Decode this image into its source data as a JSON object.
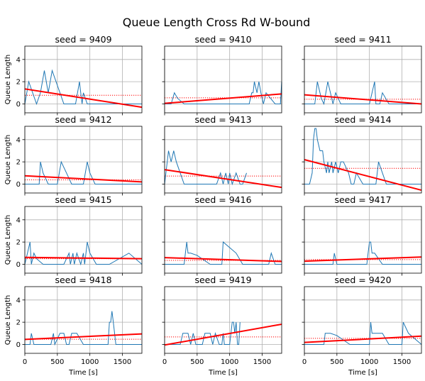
{
  "figure": {
    "title": "Queue Length  Cross Rd  W-bound",
    "ylabel": "Queue Length",
    "xlabel": "Time [s]",
    "xlim": [
      0,
      1800
    ],
    "ylim": [
      -0.8,
      5.2
    ],
    "xticks": [
      0,
      500,
      1000,
      1500
    ],
    "yticks": [
      0,
      2,
      4
    ],
    "grid": true,
    "colors": {
      "queue_line": "#1f77b4",
      "trend_line": "#ff0000",
      "mean_line": "#ff0000",
      "grid": "#b0b0b0"
    }
  },
  "chart_data": [
    {
      "type": "line",
      "title": "seed = 9409",
      "series": [
        {
          "x": [
            0,
            60,
            120,
            180,
            240,
            300,
            360,
            420,
            480,
            540,
            600,
            660,
            720,
            780,
            840,
            860,
            880,
            900,
            960,
            1020,
            1080,
            1140,
            1200,
            1800
          ],
          "y": [
            0,
            2,
            1,
            0,
            1,
            3,
            1,
            3,
            2,
            1,
            0,
            0,
            0,
            0,
            2,
            1,
            0,
            1,
            0,
            0,
            0,
            0,
            0,
            0
          ]
        }
      ],
      "mean": 0.78,
      "trend": [
        1.35,
        -0.3
      ]
    },
    {
      "type": "line",
      "title": "seed = 9410",
      "series": [
        {
          "x": [
            0,
            100,
            150,
            200,
            300,
            600,
            1000,
            1300,
            1340,
            1360,
            1380,
            1420,
            1450,
            1480,
            1520,
            1560,
            1700,
            1780,
            1800
          ],
          "y": [
            0,
            0,
            1,
            0.5,
            0,
            0,
            0,
            0,
            1,
            1,
            2,
            1,
            2,
            1,
            0,
            1,
            0,
            0,
            2
          ]
        }
      ],
      "mean": 0.55,
      "trend": [
        0.05,
        0.9
      ]
    },
    {
      "type": "line",
      "title": "seed = 9411",
      "series": [
        {
          "x": [
            0,
            100,
            160,
            200,
            260,
            300,
            360,
            400,
            440,
            480,
            560,
            700,
            1000,
            1080,
            1100,
            1160,
            1200,
            1300,
            1400,
            1800
          ],
          "y": [
            0,
            0,
            0,
            2,
            0.5,
            0,
            2,
            1,
            0,
            1,
            0,
            0,
            0,
            2,
            0,
            0,
            1,
            0,
            0,
            0
          ]
        }
      ],
      "mean": 0.42,
      "trend": [
        0.82,
        0.0
      ]
    },
    {
      "type": "line",
      "title": "seed = 9412",
      "series": [
        {
          "x": [
            0,
            220,
            240,
            280,
            360,
            500,
            560,
            640,
            720,
            900,
            960,
            1000,
            1080,
            1200,
            1400,
            1800
          ],
          "y": [
            0,
            0,
            2,
            1,
            0,
            0,
            2,
            1,
            0,
            0,
            2,
            1,
            0,
            0,
            0,
            0
          ]
        }
      ],
      "mean": 0.38,
      "trend": [
        0.75,
        0.2
      ]
    },
    {
      "type": "line",
      "title": "seed = 9413",
      "series": [
        {
          "x": [
            0,
            60,
            100,
            140,
            180,
            240,
            300,
            500,
            700,
            800,
            860,
            900,
            940,
            980,
            1000,
            1040,
            1100,
            1160,
            1200,
            1260
          ],
          "y": [
            0,
            3,
            2,
            3,
            2,
            1,
            0,
            0,
            0,
            0,
            1,
            0,
            1,
            0,
            1,
            0,
            1,
            0,
            0,
            1
          ]
        }
      ],
      "mean": 0.72,
      "trend": [
        1.3,
        -0.3
      ]
    },
    {
      "type": "line",
      "title": "seed = 9414",
      "series": [
        {
          "x": [
            0,
            80,
            120,
            140,
            160,
            180,
            200,
            240,
            280,
            300,
            340,
            360,
            380,
            420,
            440,
            480,
            520,
            560,
            600,
            680,
            720,
            760,
            800,
            900,
            1000,
            1100,
            1140,
            1200,
            1260,
            1400,
            1800
          ],
          "y": [
            0,
            0,
            1,
            4,
            5,
            5,
            4,
            3,
            3,
            2,
            1,
            2,
            1,
            2,
            1,
            2,
            1,
            2,
            2,
            1,
            0,
            0,
            1,
            0,
            0,
            0,
            2,
            1,
            0,
            0,
            0
          ]
        }
      ],
      "mean": 1.42,
      "trend": [
        2.2,
        -0.55
      ]
    },
    {
      "type": "line",
      "title": "seed = 9415",
      "series": [
        {
          "x": [
            0,
            40,
            80,
            100,
            140,
            180,
            280,
            400,
            600,
            680,
            700,
            740,
            760,
            800,
            860,
            900,
            920,
            960,
            1000,
            1100,
            1300,
            1600,
            1800
          ],
          "y": [
            0,
            1,
            2,
            0,
            1,
            0.5,
            0,
            0,
            0,
            1,
            0,
            1,
            0,
            1,
            0,
            1,
            0,
            2,
            1,
            0,
            0,
            1,
            0
          ]
        }
      ],
      "mean": 0.5,
      "trend": [
        0.62,
        0.5
      ]
    },
    {
      "type": "line",
      "title": "seed = 9416",
      "series": [
        {
          "x": [
            0,
            300,
            320,
            340,
            360,
            400,
            500,
            700,
            800,
            880,
            900,
            1000,
            1100,
            1200,
            1400,
            1600,
            1640,
            1700,
            1800
          ],
          "y": [
            0,
            0,
            1,
            2,
            1,
            1,
            0.8,
            0,
            0,
            0,
            2,
            1.5,
            1,
            0,
            0,
            0,
            1,
            0,
            0
          ]
        }
      ],
      "mean": 0.35,
      "trend": [
        0.6,
        0.25
      ]
    },
    {
      "type": "line",
      "title": "seed = 9417",
      "series": [
        {
          "x": [
            0,
            400,
            440,
            460,
            480,
            500,
            600,
            800,
            900,
            960,
            980,
            1000,
            1020,
            1040,
            1080,
            1200,
            1400,
            1800
          ],
          "y": [
            0,
            0,
            0,
            1,
            0.5,
            0,
            0,
            0,
            0,
            0,
            1,
            2,
            2,
            1,
            1,
            0,
            0,
            0
          ]
        }
      ],
      "mean": 0.42,
      "trend": [
        0.28,
        0.65
      ]
    },
    {
      "type": "line",
      "title": "seed = 9418",
      "series": [
        {
          "x": [
            0,
            80,
            100,
            140,
            200,
            400,
            440,
            460,
            540,
            600,
            640,
            680,
            720,
            800,
            900,
            1000,
            1100,
            1200,
            1280,
            1300,
            1320,
            1340,
            1360,
            1380,
            1400,
            1800
          ],
          "y": [
            0,
            0,
            1,
            0,
            0,
            0,
            1,
            0,
            1,
            1,
            0,
            0,
            1,
            1,
            0,
            0,
            0,
            0,
            0,
            2,
            2,
            3,
            2,
            1,
            0,
            0
          ]
        }
      ],
      "mean": 0.47,
      "trend": [
        0.45,
        0.95
      ]
    },
    {
      "type": "line",
      "title": "seed = 9419",
      "series": [
        {
          "x": [
            0,
            100,
            240,
            280,
            320,
            360,
            400,
            440,
            480,
            540,
            580,
            620,
            700,
            740,
            780,
            840,
            880,
            900,
            920,
            960,
            1000,
            1040,
            1060,
            1080,
            1100,
            1120,
            1140,
            1160
          ],
          "y": [
            0,
            0,
            0,
            1,
            1,
            1,
            0,
            1,
            0,
            0,
            0,
            1,
            1,
            0,
            1,
            0,
            0,
            1,
            0,
            0,
            0,
            2,
            2,
            1,
            2,
            0,
            0,
            2
          ]
        }
      ],
      "mean": 0.68,
      "trend": [
        -0.05,
        1.82
      ]
    },
    {
      "type": "line",
      "title": "seed = 9420",
      "series": [
        {
          "x": [
            0,
            200,
            300,
            320,
            340,
            400,
            500,
            700,
            800,
            1000,
            1020,
            1040,
            1060,
            1100,
            1200,
            1300,
            1400,
            1500,
            1520,
            1560,
            1600,
            1800
          ],
          "y": [
            0,
            0,
            0,
            1,
            1,
            1,
            0.8,
            0,
            0,
            0,
            2,
            1,
            1,
            1,
            1,
            0,
            0,
            0,
            2,
            1.5,
            1,
            0
          ]
        }
      ],
      "mean": 0.55,
      "trend": [
        0.18,
        0.75
      ]
    }
  ]
}
